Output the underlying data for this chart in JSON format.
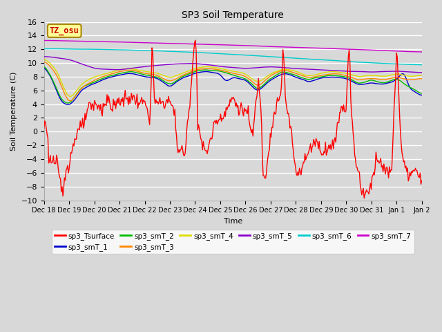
{
  "title": "SP3 Soil Temperature",
  "ylabel": "Soil Temperature (C)",
  "xlabel": "Time",
  "ylim": [
    -10,
    16
  ],
  "yticks": [
    -10,
    -8,
    -6,
    -4,
    -2,
    0,
    2,
    4,
    6,
    8,
    10,
    12,
    14,
    16
  ],
  "background_color": "#d8d8d8",
  "plot_bg": "#d8d8d8",
  "tz_label": "TZ_osu",
  "tz_bg": "#ffff99",
  "tz_border": "#aa8800",
  "tz_text_color": "#cc0000",
  "series": {
    "sp3_Tsurface": {
      "color": "#ff0000",
      "lw": 1.0
    },
    "sp3_smT_1": {
      "color": "#0000cc",
      "lw": 1.0
    },
    "sp3_smT_2": {
      "color": "#00bb00",
      "lw": 1.0
    },
    "sp3_smT_3": {
      "color": "#ff8800",
      "lw": 1.0
    },
    "sp3_smT_4": {
      "color": "#dddd00",
      "lw": 1.0
    },
    "sp3_smT_5": {
      "color": "#8800cc",
      "lw": 1.0
    },
    "sp3_smT_6": {
      "color": "#00cccc",
      "lw": 1.0
    },
    "sp3_smT_7": {
      "color": "#cc00cc",
      "lw": 1.0
    }
  },
  "xtick_labels": [
    "Dec 18",
    "Dec 19",
    "Dec 20",
    "Dec 21",
    "Dec 22",
    "Dec 23",
    "Dec 24",
    "Dec 25",
    "Dec 26",
    "Dec 27",
    "Dec 28",
    "Dec 29",
    "Dec 30",
    "Dec 31",
    "Jan 1",
    "Jan 2"
  ],
  "n_points": 480
}
